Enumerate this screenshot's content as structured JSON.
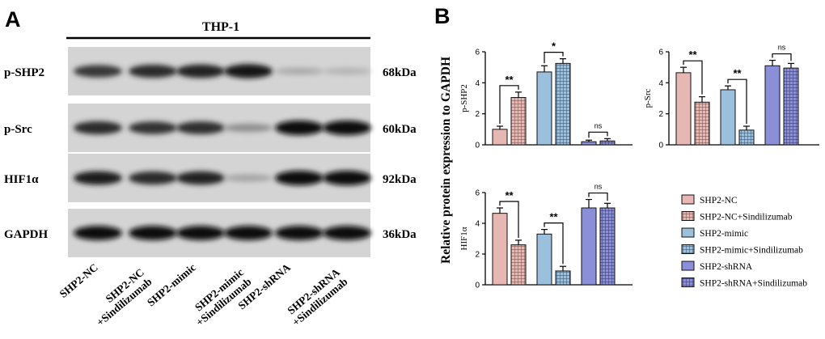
{
  "panel_labels": {
    "a": "A",
    "b": "B"
  },
  "blot": {
    "cell_line": "THP-1",
    "proteins": [
      {
        "name": "p-SHP2",
        "kda": "68kDa",
        "intensities": [
          0.78,
          0.85,
          0.88,
          0.95,
          0.22,
          0.18
        ]
      },
      {
        "name": "p-Src",
        "kda": "60kDa",
        "intensities": [
          0.85,
          0.8,
          0.82,
          0.35,
          1.0,
          1.0
        ]
      },
      {
        "name": "HIF1α",
        "kda": "92kDa",
        "intensities": [
          0.9,
          0.85,
          0.88,
          0.25,
          1.0,
          1.0
        ]
      },
      {
        "name": "GAPDH",
        "kda": "36kDa",
        "intensities": [
          0.97,
          0.97,
          0.97,
          0.97,
          0.97,
          0.97
        ]
      }
    ],
    "lanes": [
      {
        "line1": "SHP2-NC",
        "line2": ""
      },
      {
        "line1": "SHP2-NC",
        "line2": "+Sindilizumab"
      },
      {
        "line1": "SHP2-mimic",
        "line2": ""
      },
      {
        "line1": "SHP2-mimic",
        "line2": "+Sindilizumab"
      },
      {
        "line1": "SHP2-shRNA",
        "line2": ""
      },
      {
        "line1": "SHP2-shRNA",
        "line2": "+Sindilizumab"
      }
    ]
  },
  "shared_ylabel": "Relative protein expression to GAPDH",
  "legend": [
    {
      "label": "SHP2-NC",
      "color": "#e7b8b3",
      "pattern": "solid"
    },
    {
      "label": "SHP2-NC+Sindilizumab",
      "color": "#e7b8b3",
      "pattern": "grid"
    },
    {
      "label": "SHP2-mimic",
      "color": "#9ac0de",
      "pattern": "solid"
    },
    {
      "label": "SHP2-mimic+Sindilizumab",
      "color": "#9ac0de",
      "pattern": "grid"
    },
    {
      "label": "SHP2-shRNA",
      "color": "#8a8fd8",
      "pattern": "solid"
    },
    {
      "label": "SHP2-shRNA+Sindilizumab",
      "color": "#8a8fd8",
      "pattern": "grid"
    }
  ],
  "chart_data": [
    {
      "type": "bar",
      "ylabel": "p-SHP2",
      "ylim": [
        0,
        6
      ],
      "yticks": [
        "0",
        "2",
        "4",
        "6"
      ],
      "values": [
        1.0,
        3.05,
        4.7,
        5.25,
        0.2,
        0.25
      ],
      "errors": [
        0.2,
        0.35,
        0.4,
        0.3,
        0.1,
        0.15
      ],
      "significance": [
        {
          "pair": [
            0,
            1
          ],
          "label": "**"
        },
        {
          "pair": [
            2,
            3
          ],
          "label": "*"
        },
        {
          "pair": [
            4,
            5
          ],
          "label": "ns"
        }
      ]
    },
    {
      "type": "bar",
      "ylabel": "p-Src",
      "ylim": [
        0,
        6
      ],
      "yticks": [
        "0",
        "2",
        "4",
        "6"
      ],
      "values": [
        4.65,
        2.75,
        3.55,
        0.95,
        5.1,
        4.95
      ],
      "errors": [
        0.35,
        0.35,
        0.25,
        0.25,
        0.35,
        0.3
      ],
      "significance": [
        {
          "pair": [
            0,
            1
          ],
          "label": "**"
        },
        {
          "pair": [
            2,
            3
          ],
          "label": "**"
        },
        {
          "pair": [
            4,
            5
          ],
          "label": "ns"
        }
      ]
    },
    {
      "type": "bar",
      "ylabel": "HIF1α",
      "ylim": [
        0,
        6
      ],
      "yticks": [
        "0",
        "2",
        "4",
        "6"
      ],
      "values": [
        4.65,
        2.6,
        3.3,
        0.9,
        5.0,
        5.0
      ],
      "errors": [
        0.35,
        0.3,
        0.3,
        0.3,
        0.55,
        0.3
      ],
      "significance": [
        {
          "pair": [
            0,
            1
          ],
          "label": "**"
        },
        {
          "pair": [
            2,
            3
          ],
          "label": "**"
        },
        {
          "pair": [
            4,
            5
          ],
          "label": "ns"
        }
      ]
    }
  ]
}
